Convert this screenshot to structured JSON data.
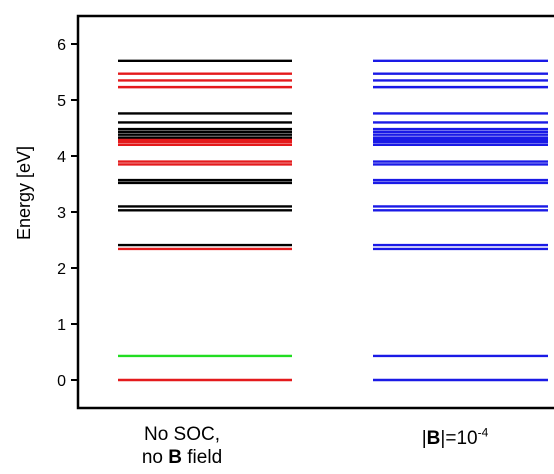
{
  "chart_data": {
    "type": "scatter",
    "ylabel": "Energy [eV]",
    "ylim": [
      -0.5,
      6.5
    ],
    "yticks": [
      0,
      1,
      2,
      3,
      4,
      5,
      6
    ],
    "categories": [
      {
        "line1": "No SOC,",
        "line2_prefix": "no ",
        "line2_bold": "B",
        "line2_suffix": " field"
      },
      {
        "prefix": "|",
        "bold": "B",
        "mid": "|=10",
        "sup": "-4"
      }
    ],
    "series": [
      {
        "category": 0,
        "levels": [
          {
            "e": 0.0,
            "color": "#e41a1c"
          },
          {
            "e": 0.43,
            "color": "#22dd22"
          },
          {
            "e": 2.34,
            "color": "#e41a1c"
          },
          {
            "e": 2.41,
            "color": "#000000"
          },
          {
            "e": 3.03,
            "color": "#000000"
          },
          {
            "e": 3.1,
            "color": "#000000"
          },
          {
            "e": 3.52,
            "color": "#000000"
          },
          {
            "e": 3.57,
            "color": "#000000"
          },
          {
            "e": 3.85,
            "color": "#e41a1c"
          },
          {
            "e": 3.9,
            "color": "#e41a1c"
          },
          {
            "e": 4.2,
            "color": "#e41a1c"
          },
          {
            "e": 4.25,
            "color": "#e41a1c"
          },
          {
            "e": 4.29,
            "color": "#e41a1c"
          },
          {
            "e": 4.33,
            "color": "#000000"
          },
          {
            "e": 4.38,
            "color": "#000000"
          },
          {
            "e": 4.43,
            "color": "#000000"
          },
          {
            "e": 4.48,
            "color": "#000000"
          },
          {
            "e": 4.6,
            "color": "#000000"
          },
          {
            "e": 4.76,
            "color": "#000000"
          },
          {
            "e": 5.23,
            "color": "#e41a1c"
          },
          {
            "e": 5.35,
            "color": "#e41a1c"
          },
          {
            "e": 5.47,
            "color": "#e41a1c"
          },
          {
            "e": 5.7,
            "color": "#000000"
          }
        ]
      },
      {
        "category": 1,
        "levels": [
          {
            "e": 0.0,
            "color": "#1a1ae6"
          },
          {
            "e": 0.43,
            "color": "#1a1ae6"
          },
          {
            "e": 2.34,
            "color": "#1a1ae6"
          },
          {
            "e": 2.41,
            "color": "#1a1ae6"
          },
          {
            "e": 3.03,
            "color": "#1a1ae6"
          },
          {
            "e": 3.1,
            "color": "#1a1ae6"
          },
          {
            "e": 3.52,
            "color": "#1a1ae6"
          },
          {
            "e": 3.57,
            "color": "#1a1ae6"
          },
          {
            "e": 3.85,
            "color": "#1a1ae6"
          },
          {
            "e": 3.9,
            "color": "#1a1ae6"
          },
          {
            "e": 4.2,
            "color": "#1a1ae6"
          },
          {
            "e": 4.25,
            "color": "#1a1ae6"
          },
          {
            "e": 4.29,
            "color": "#1a1ae6"
          },
          {
            "e": 4.33,
            "color": "#1a1ae6"
          },
          {
            "e": 4.38,
            "color": "#1a1ae6"
          },
          {
            "e": 4.43,
            "color": "#1a1ae6"
          },
          {
            "e": 4.48,
            "color": "#1a1ae6"
          },
          {
            "e": 4.6,
            "color": "#1a1ae6"
          },
          {
            "e": 4.76,
            "color": "#1a1ae6"
          },
          {
            "e": 5.23,
            "color": "#1a1ae6"
          },
          {
            "e": 5.35,
            "color": "#1a1ae6"
          },
          {
            "e": 5.47,
            "color": "#1a1ae6"
          },
          {
            "e": 5.7,
            "color": "#1a1ae6"
          }
        ]
      }
    ]
  }
}
